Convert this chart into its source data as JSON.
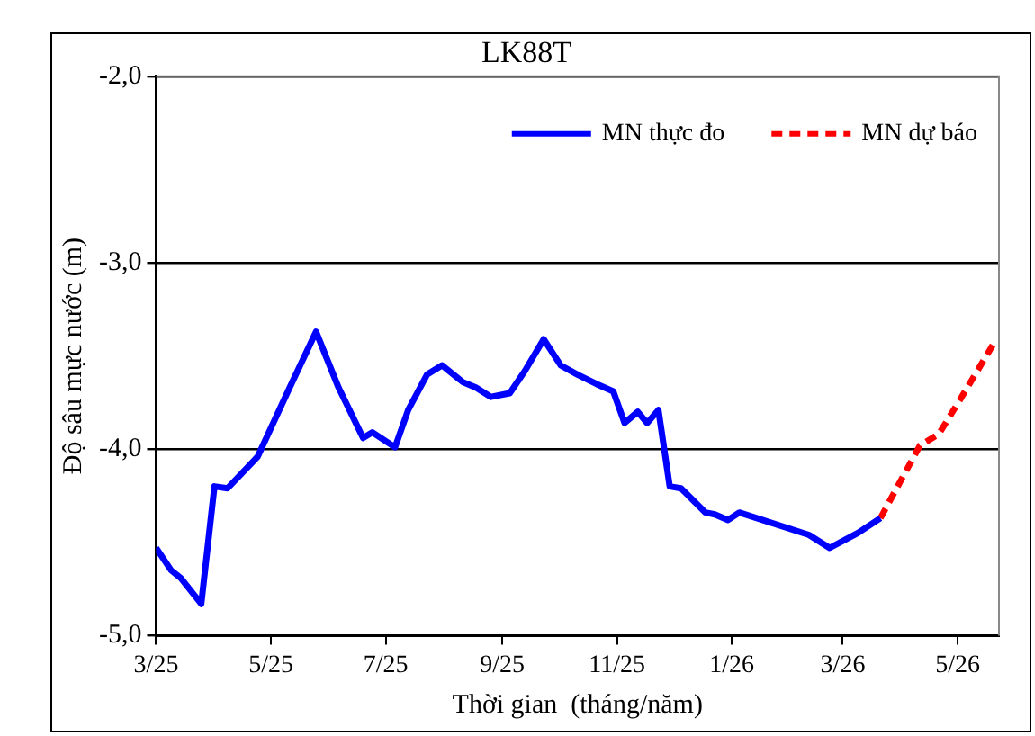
{
  "chart_data": {
    "type": "line",
    "title": "LK88T",
    "xlabel": "Thời gian  (tháng/năm)",
    "ylabel": "Độ sâu mực nước (m)",
    "xlim": [
      "2025-03-01",
      "2026-05-23"
    ],
    "xticks": [
      {
        "value": "2025-03",
        "label": "3/25"
      },
      {
        "value": "2025-05",
        "label": "5/25"
      },
      {
        "value": "2025-07",
        "label": "7/25"
      },
      {
        "value": "2025-09",
        "label": "9/25"
      },
      {
        "value": "2025-11",
        "label": "11/25"
      },
      {
        "value": "2026-01",
        "label": "1/26"
      },
      {
        "value": "2026-03",
        "label": "3/26"
      },
      {
        "value": "2026-05",
        "label": "5/26"
      }
    ],
    "ylim": [
      -5,
      -2
    ],
    "yticks": [
      {
        "value": -5,
        "label": "-5,0"
      },
      {
        "value": -4,
        "label": "-4,0"
      },
      {
        "value": -3,
        "label": "-3,0"
      },
      {
        "value": -2,
        "label": "-2,0"
      }
    ],
    "grid": "y",
    "legend": "top right",
    "marker": "none",
    "series": [
      {
        "name": "MN thực đo",
        "color": "#0000ff",
        "line_style": "solid",
        "x": [
          "2025-03-01",
          "2025-03-09",
          "2025-03-14",
          "2025-03-25",
          "2025-04-01",
          "2025-04-08",
          "2025-04-24",
          "2025-05-11",
          "2025-05-25",
          "2025-06-06",
          "2025-06-19",
          "2025-06-24",
          "2025-07-06",
          "2025-07-13",
          "2025-07-23",
          "2025-07-31",
          "2025-08-11",
          "2025-08-18",
          "2025-08-26",
          "2025-09-05",
          "2025-09-13",
          "2025-09-23",
          "2025-10-02",
          "2025-10-11",
          "2025-10-21",
          "2025-10-30",
          "2025-11-05",
          "2025-11-12",
          "2025-11-17",
          "2025-11-23",
          "2025-11-29",
          "2025-12-05",
          "2025-12-13",
          "2025-12-18",
          "2025-12-23",
          "2025-12-30",
          "2026-01-05",
          "2026-02-11",
          "2026-02-22",
          "2026-03-09",
          "2026-03-21"
        ],
        "values": [
          -4.53,
          -4.65,
          -4.69,
          -4.83,
          -4.2,
          -4.21,
          -4.04,
          -3.67,
          -3.37,
          -3.67,
          -3.94,
          -3.91,
          -3.99,
          -3.79,
          -3.6,
          -3.55,
          -3.64,
          -3.67,
          -3.72,
          -3.7,
          -3.58,
          -3.41,
          -3.55,
          -3.6,
          -3.65,
          -3.69,
          -3.86,
          -3.8,
          -3.86,
          -3.79,
          -4.2,
          -4.21,
          -4.29,
          -4.34,
          -4.35,
          -4.38,
          -4.34,
          -4.46,
          -4.53,
          -4.45,
          -4.37
        ]
      },
      {
        "name": "MN dự báo",
        "color": "#ff0000",
        "line_style": "dashed",
        "x": [
          "2026-03-21",
          "2026-04-11",
          "2026-04-21",
          "2026-05-02",
          "2026-05-21"
        ],
        "values": [
          -4.37,
          -3.98,
          -3.92,
          -3.74,
          -3.42
        ]
      }
    ]
  }
}
